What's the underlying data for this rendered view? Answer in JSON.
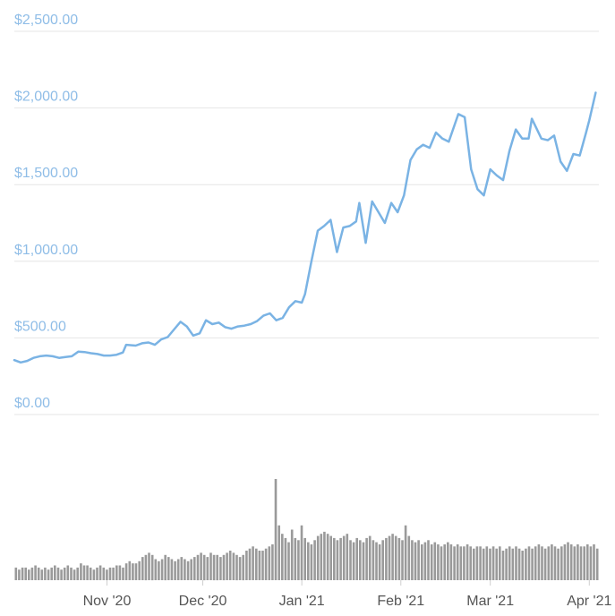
{
  "colors": {
    "price_line": "#7ab3e4",
    "axis_labels": "#8fbde7",
    "volume_bars": "#9a9a9a",
    "grid": "#e6e6e6"
  },
  "chart_data": [
    {
      "type": "line",
      "title": "",
      "xlabel": "",
      "ylabel": "",
      "ylim": [
        0,
        2500
      ],
      "y_tick_labels": [
        "$0.00",
        "$500.00",
        "$1,000.00",
        "$1,500.00",
        "$2,000.00",
        "$2,500.00"
      ],
      "y_ticks": [
        0,
        500,
        1000,
        1500,
        2000,
        2500
      ],
      "x_tick_labels": [
        "Nov '20",
        "Dec '20",
        "Jan '21",
        "Feb '21",
        "Mar '21",
        "Apr '21"
      ],
      "x_ticks": [
        "2020-11-01",
        "2020-12-01",
        "2021-01-01",
        "2021-02-01",
        "2021-03-01",
        "2021-04-01"
      ],
      "x_range": [
        "2020-10-03",
        "2021-04-04"
      ],
      "grid": true,
      "series": [
        {
          "values": [
            [
              "2020-10-03",
              355
            ],
            [
              "2020-10-05",
              340
            ],
            [
              "2020-10-07",
              350
            ],
            [
              "2020-10-09",
              370
            ],
            [
              "2020-10-11",
              380
            ],
            [
              "2020-10-13",
              385
            ],
            [
              "2020-10-15",
              380
            ],
            [
              "2020-10-17",
              370
            ],
            [
              "2020-10-19",
              375
            ],
            [
              "2020-10-21",
              380
            ],
            [
              "2020-10-23",
              410
            ],
            [
              "2020-10-25",
              408
            ],
            [
              "2020-10-27",
              400
            ],
            [
              "2020-10-29",
              395
            ],
            [
              "2020-10-31",
              385
            ],
            [
              "2020-11-02",
              385
            ],
            [
              "2020-11-04",
              390
            ],
            [
              "2020-11-06",
              405
            ],
            [
              "2020-11-07",
              455
            ],
            [
              "2020-11-10",
              450
            ],
            [
              "2020-11-12",
              465
            ],
            [
              "2020-11-14",
              470
            ],
            [
              "2020-11-16",
              455
            ],
            [
              "2020-11-18",
              490
            ],
            [
              "2020-11-20",
              505
            ],
            [
              "2020-11-22",
              555
            ],
            [
              "2020-11-24",
              605
            ],
            [
              "2020-11-26",
              575
            ],
            [
              "2020-11-28",
              515
            ],
            [
              "2020-11-30",
              530
            ],
            [
              "2020-12-02",
              615
            ],
            [
              "2020-12-04",
              590
            ],
            [
              "2020-12-06",
              600
            ],
            [
              "2020-12-08",
              570
            ],
            [
              "2020-12-10",
              560
            ],
            [
              "2020-12-12",
              575
            ],
            [
              "2020-12-14",
              580
            ],
            [
              "2020-12-16",
              590
            ],
            [
              "2020-12-18",
              610
            ],
            [
              "2020-12-20",
              645
            ],
            [
              "2020-12-22",
              660
            ],
            [
              "2020-12-24",
              615
            ],
            [
              "2020-12-26",
              630
            ],
            [
              "2020-12-28",
              700
            ],
            [
              "2020-12-30",
              740
            ],
            [
              "2021-01-01",
              730
            ],
            [
              "2021-01-02",
              785
            ],
            [
              "2021-01-04",
              1000
            ],
            [
              "2021-01-06",
              1200
            ],
            [
              "2021-01-08",
              1230
            ],
            [
              "2021-01-10",
              1270
            ],
            [
              "2021-01-12",
              1060
            ],
            [
              "2021-01-14",
              1220
            ],
            [
              "2021-01-16",
              1230
            ],
            [
              "2021-01-18",
              1260
            ],
            [
              "2021-01-19",
              1380
            ],
            [
              "2021-01-21",
              1120
            ],
            [
              "2021-01-23",
              1390
            ],
            [
              "2021-01-25",
              1320
            ],
            [
              "2021-01-27",
              1250
            ],
            [
              "2021-01-29",
              1380
            ],
            [
              "2021-01-31",
              1320
            ],
            [
              "2021-02-02",
              1430
            ],
            [
              "2021-02-04",
              1660
            ],
            [
              "2021-02-06",
              1730
            ],
            [
              "2021-02-08",
              1760
            ],
            [
              "2021-02-10",
              1740
            ],
            [
              "2021-02-12",
              1840
            ],
            [
              "2021-02-14",
              1800
            ],
            [
              "2021-02-16",
              1780
            ],
            [
              "2021-02-19",
              1960
            ],
            [
              "2021-02-21",
              1940
            ],
            [
              "2021-02-23",
              1600
            ],
            [
              "2021-02-25",
              1470
            ],
            [
              "2021-02-27",
              1430
            ],
            [
              "2021-03-01",
              1600
            ],
            [
              "2021-03-03",
              1560
            ],
            [
              "2021-03-05",
              1530
            ],
            [
              "2021-03-07",
              1720
            ],
            [
              "2021-03-09",
              1860
            ],
            [
              "2021-03-11",
              1800
            ],
            [
              "2021-03-13",
              1800
            ],
            [
              "2021-03-14",
              1930
            ],
            [
              "2021-03-17",
              1800
            ],
            [
              "2021-03-19",
              1790
            ],
            [
              "2021-03-21",
              1820
            ],
            [
              "2021-03-23",
              1650
            ],
            [
              "2021-03-25",
              1590
            ],
            [
              "2021-03-27",
              1700
            ],
            [
              "2021-03-29",
              1690
            ],
            [
              "2021-03-31",
              1840
            ],
            [
              "2021-04-01",
              1920
            ],
            [
              "2021-04-03",
              2100
            ]
          ]
        }
      ]
    },
    {
      "type": "bar",
      "title": "",
      "xlabel": "",
      "ylabel": "",
      "x_range": [
        "2020-10-03",
        "2021-04-04"
      ],
      "values": [
        6,
        5,
        6,
        6,
        5,
        6,
        7,
        6,
        5,
        6,
        5,
        6,
        7,
        6,
        5,
        6,
        7,
        6,
        5,
        6,
        8,
        7,
        7,
        6,
        5,
        6,
        7,
        6,
        5,
        6,
        6,
        7,
        7,
        6,
        8,
        9,
        8,
        8,
        9,
        11,
        12,
        13,
        12,
        10,
        9,
        10,
        12,
        11,
        10,
        9,
        10,
        11,
        10,
        9,
        10,
        11,
        12,
        13,
        12,
        11,
        13,
        12,
        12,
        11,
        12,
        13,
        14,
        13,
        12,
        11,
        12,
        14,
        15,
        16,
        15,
        14,
        14,
        15,
        16,
        17,
        48,
        26,
        22,
        20,
        18,
        24,
        20,
        19,
        26,
        20,
        18,
        17,
        19,
        21,
        22,
        23,
        22,
        21,
        20,
        19,
        20,
        21,
        22,
        19,
        18,
        20,
        19,
        18,
        20,
        21,
        19,
        18,
        17,
        19,
        20,
        21,
        22,
        21,
        20,
        19,
        26,
        21,
        19,
        18,
        19,
        17,
        18,
        19,
        17,
        18,
        17,
        16,
        17,
        18,
        17,
        16,
        17,
        16,
        16,
        17,
        16,
        15,
        16,
        16,
        15,
        16,
        15,
        16,
        15,
        16,
        14,
        15,
        16,
        15,
        16,
        15,
        14,
        15,
        16,
        15,
        16,
        17,
        16,
        15,
        16,
        17,
        16,
        15,
        16,
        17,
        18,
        17,
        16,
        17,
        16,
        16,
        17,
        16,
        17,
        15
      ]
    }
  ]
}
